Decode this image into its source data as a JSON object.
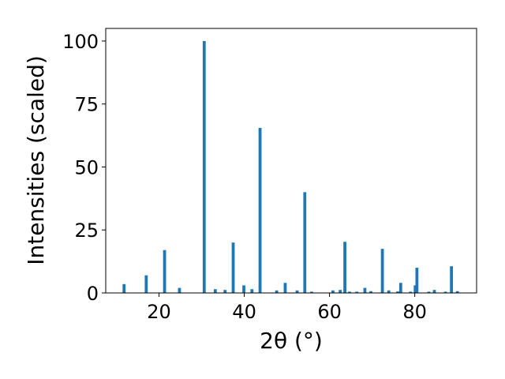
{
  "colors": {
    "bar": "#1f77b4",
    "axis": "#000000",
    "background": "#ffffff"
  },
  "chart_data": {
    "type": "bar",
    "title": "",
    "xlabel": "2θ (°)",
    "ylabel": "Intensities (scaled)",
    "xlim": [
      7.5,
      94.5
    ],
    "ylim": [
      0,
      105
    ],
    "xticks": [
      20,
      40,
      60,
      80
    ],
    "yticks": [
      0,
      25,
      50,
      75,
      100
    ],
    "grid": false,
    "legend": "none",
    "bar_width": 0.7,
    "x": [
      11.8,
      17.0,
      21.3,
      24.8,
      30.6,
      33.2,
      35.5,
      37.4,
      39.9,
      41.8,
      43.7,
      47.6,
      49.6,
      52.4,
      54.2,
      55.8,
      60.8,
      62.5,
      63.6,
      64.7,
      66.4,
      68.3,
      69.7,
      72.4,
      73.9,
      76.0,
      76.7,
      79.0,
      80.1,
      80.5,
      83.3,
      84.6,
      87.2,
      88.6,
      90.0
    ],
    "values": [
      3.5,
      7.0,
      17.0,
      2.0,
      100.0,
      1.5,
      1.2,
      20.0,
      3.0,
      1.5,
      65.5,
      1.0,
      4.0,
      1.0,
      40.0,
      0.5,
      1.0,
      1.2,
      20.3,
      0.5,
      0.5,
      2.0,
      0.7,
      17.5,
      1.0,
      0.6,
      4.0,
      0.5,
      3.0,
      10.0,
      0.5,
      1.2,
      0.5,
      10.6,
      0.7
    ]
  }
}
